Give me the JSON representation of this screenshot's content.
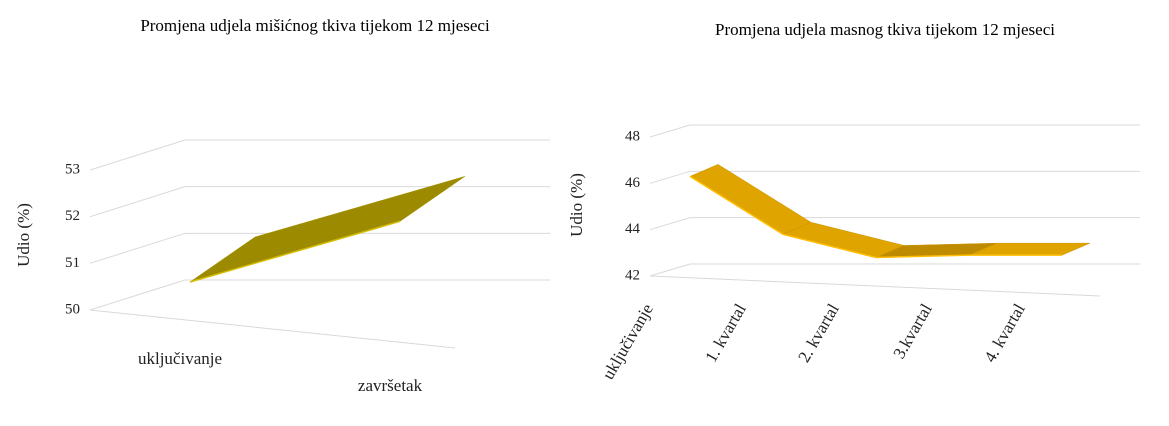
{
  "chart_data": [
    {
      "type": "line",
      "title": "Promjena udjela mišićnog tkiva tijekom 12 mjeseci",
      "y_label": "Udio (%)",
      "categories": [
        "uključivanje",
        "završetak"
      ],
      "values": [
        50.6,
        51.9
      ],
      "color": "#b8a400",
      "ylim": [
        50,
        53
      ],
      "yticks": [
        50,
        51,
        52,
        53
      ],
      "grid": true
    },
    {
      "type": "line",
      "title": "Promjena udjela masnog tkiva tijekom 12 mjeseci",
      "y_label": "Udio (%)",
      "categories": [
        "uključivanje",
        "1. kvartal",
        "2. kvartal",
        "3.kvartal",
        "4. kvartal"
      ],
      "values": [
        46.3,
        43.8,
        42.8,
        42.9,
        42.9
      ],
      "color": "#e0a400",
      "ylim": [
        42,
        48
      ],
      "yticks": [
        42,
        44,
        46,
        48
      ],
      "grid": true
    }
  ]
}
